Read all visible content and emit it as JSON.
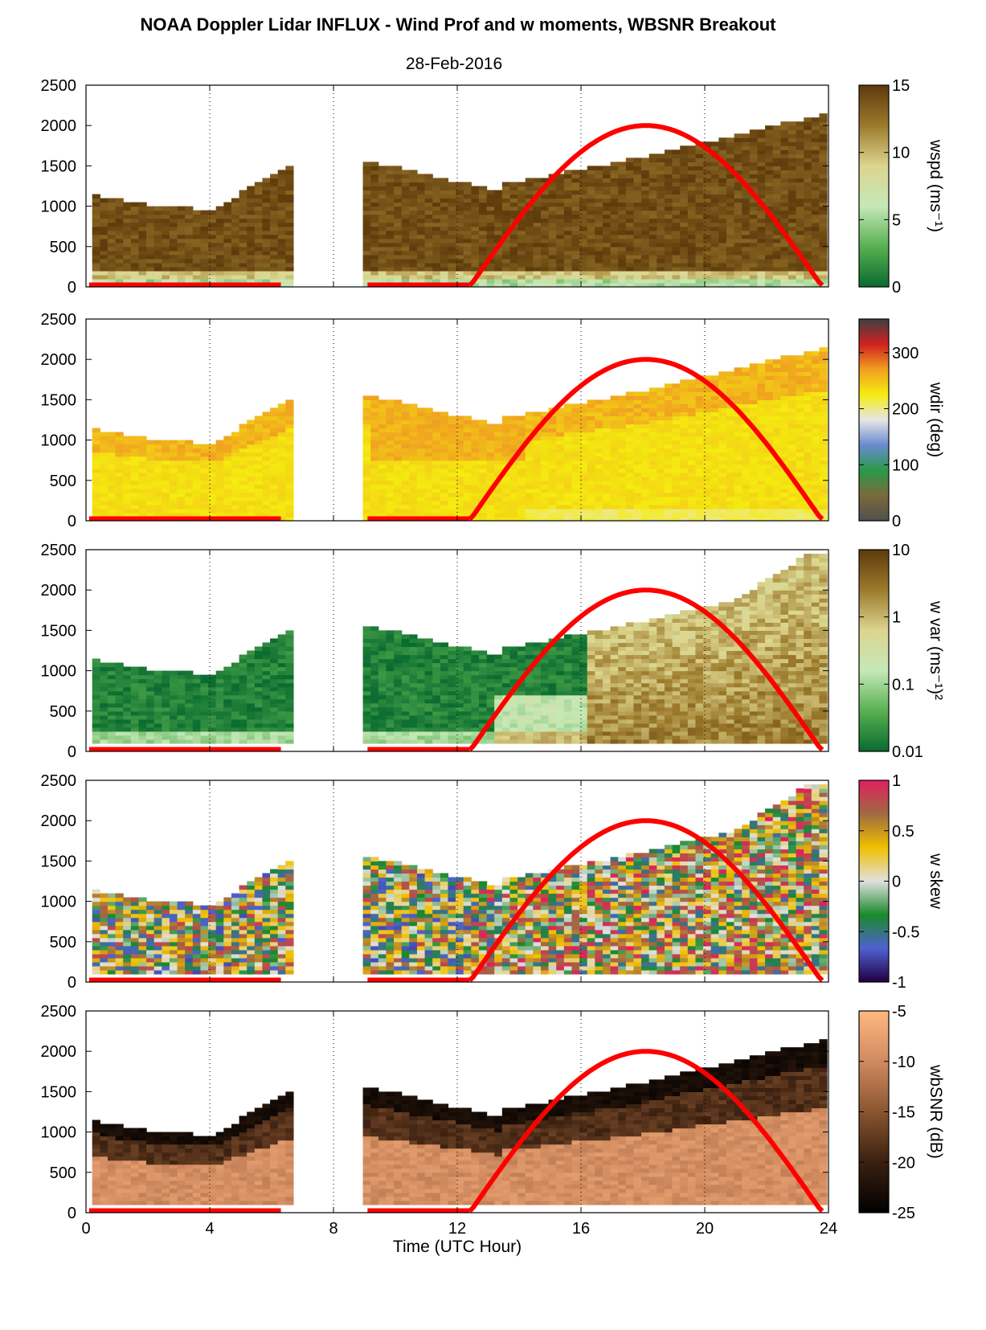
{
  "title": "NOAA Doppler Lidar INFLUX - Wind Prof and w moments, WBSNR Breakout",
  "subtitle": "28-Feb-2016",
  "chart_data": {
    "type": "heatmap",
    "xlabel": "Time (UTC Hour)",
    "xlim": [
      0,
      24
    ],
    "xticks": [
      "0",
      "4",
      "8",
      "12",
      "16",
      "20",
      "24"
    ],
    "dotted_gridlines_x": [
      4,
      8,
      12,
      16,
      20,
      24
    ],
    "overlay_curve": {
      "color": "#ff0000",
      "flat_segments_hours": [
        [
          0.1,
          6.3
        ],
        [
          9.1,
          12.4
        ]
      ],
      "arc_start_hour": 12.4,
      "arc_peak_hour": 18.0,
      "arc_end_hour": 23.8,
      "peak_value": 2000
    },
    "panels": [
      {
        "id": "wspd",
        "ylim": [
          0,
          2500
        ],
        "yticks": [
          "0",
          "500",
          "1000",
          "1500",
          "2000",
          "2500"
        ],
        "colorbar_label": "wspd (ms⁻¹)",
        "colorbar_ticks": [
          {
            "label": "15",
            "frac": 1
          },
          {
            "label": "10",
            "frac": 0.6667
          },
          {
            "label": "5",
            "frac": 0.3333
          },
          {
            "label": "0",
            "frac": 0
          }
        ],
        "colormap": [
          "#0a6b30",
          "#58b050",
          "#c5e8b8",
          "#dcd58e",
          "#9c7a2c",
          "#5e3a0c"
        ],
        "scale": "linear",
        "range": [
          0,
          15
        ]
      },
      {
        "id": "wdir",
        "ylim": [
          0,
          2500
        ],
        "yticks": [
          "0",
          "500",
          "1000",
          "1500",
          "2000",
          "2500"
        ],
        "colorbar_label": "wdir (deg)",
        "colorbar_ticks": [
          {
            "label": "300",
            "frac": 0.8333
          },
          {
            "label": "200",
            "frac": 0.5556
          },
          {
            "label": "100",
            "frac": 0.2778
          },
          {
            "label": "0",
            "frac": 0
          }
        ],
        "colormap": [
          "#505050",
          "#7a6a3a",
          "#2a9a4a",
          "#6a8ad0",
          "#e6e6e6",
          "#f5ec10",
          "#f0a020",
          "#d02020",
          "#404040"
        ],
        "scale": "linear",
        "range": [
          0,
          360
        ]
      },
      {
        "id": "wvar",
        "ylim": [
          0,
          2500
        ],
        "yticks": [
          "0",
          "500",
          "1000",
          "1500",
          "2000",
          "2500"
        ],
        "colorbar_label": "w var (ms⁻¹)²",
        "colorbar_ticks": [
          {
            "label": "10",
            "frac": 1
          },
          {
            "label": "1",
            "frac": 0.6667
          },
          {
            "label": "0.1",
            "frac": 0.3333
          },
          {
            "label": "0.01",
            "frac": 0
          }
        ],
        "colormap": [
          "#0a6b30",
          "#58b050",
          "#c5e8b8",
          "#dcd58e",
          "#9c7a2c",
          "#5e3a0c"
        ],
        "scale": "log",
        "range": [
          0.01,
          10
        ]
      },
      {
        "id": "wskew",
        "ylim": [
          0,
          2500
        ],
        "yticks": [
          "0",
          "500",
          "1000",
          "1500",
          "2000",
          "2500"
        ],
        "colorbar_label": "w skew",
        "colorbar_ticks": [
          {
            "label": "1",
            "frac": 1
          },
          {
            "label": "0.5",
            "frac": 0.75
          },
          {
            "label": "0",
            "frac": 0.5
          },
          {
            "label": "-0.5",
            "frac": 0.25
          },
          {
            "label": "-1",
            "frac": 0
          }
        ],
        "colormap": [
          "#200040",
          "#5060d0",
          "#1a8a2a",
          "#e0e0e0",
          "#f0c000",
          "#a06a40",
          "#e02060"
        ],
        "scale": "linear",
        "range": [
          -1,
          1
        ]
      },
      {
        "id": "wbsnr",
        "ylim": [
          0,
          2500
        ],
        "yticks": [
          "0",
          "500",
          "1000",
          "1500",
          "2000",
          "2500"
        ],
        "colorbar_label": "wbSNR (dB)",
        "colorbar_ticks": [
          {
            "label": "-5",
            "frac": 1
          },
          {
            "label": "-10",
            "frac": 0.75
          },
          {
            "label": "-15",
            "frac": 0.5
          },
          {
            "label": "-20",
            "frac": 0.25
          },
          {
            "label": "-25",
            "frac": 0
          }
        ],
        "colormap": [
          "#000000",
          "#3a2010",
          "#8a5530",
          "#d08a60",
          "#ffb880"
        ],
        "scale": "linear",
        "range": [
          -25,
          -5
        ]
      }
    ]
  }
}
